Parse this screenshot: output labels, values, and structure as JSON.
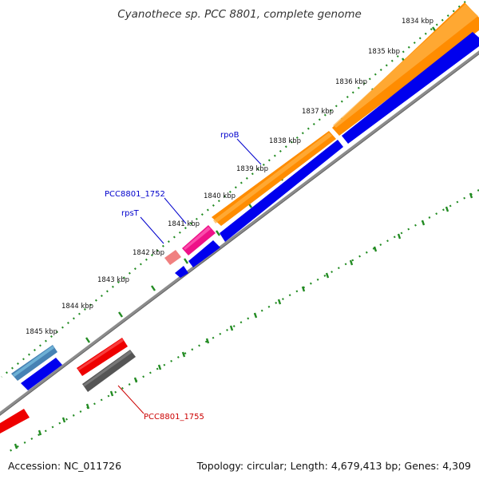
{
  "title": "Cyanothece sp. PCC 8801, complete genome",
  "footer": {
    "accession": "Accession: NC_011726",
    "summary": "Topology: circular; Length: 4,679,413 bp; Genes: 4,309"
  },
  "ticks": [
    "1834 kbp",
    "1835 kbp",
    "1836 kbp",
    "1837 kbp",
    "1838 kbp",
    "1839 kbp",
    "1840 kbp",
    "1841 kbp",
    "1842 kbp",
    "1843 kbp",
    "1844 kbp",
    "1845 kbp"
  ],
  "gene_labels": {
    "rpoB": "rpoB",
    "pcc1752": "PCC8801_1752",
    "rpsT": "rpsT",
    "pcc1755": "PCC8801_1755"
  },
  "colors": {
    "orange_track": "#ff8c00",
    "blue_cds": "#0000ee",
    "pink_gene": "#ee1188",
    "light_pink_gene": "#f08080",
    "red_gene": "#ee0000",
    "steel_gene": "#4682b4",
    "gray_gene": "#555555",
    "backbone": "#888888",
    "ticks": "#228b22",
    "label_blue": "#0000cc",
    "label_red": "#cc0000"
  }
}
